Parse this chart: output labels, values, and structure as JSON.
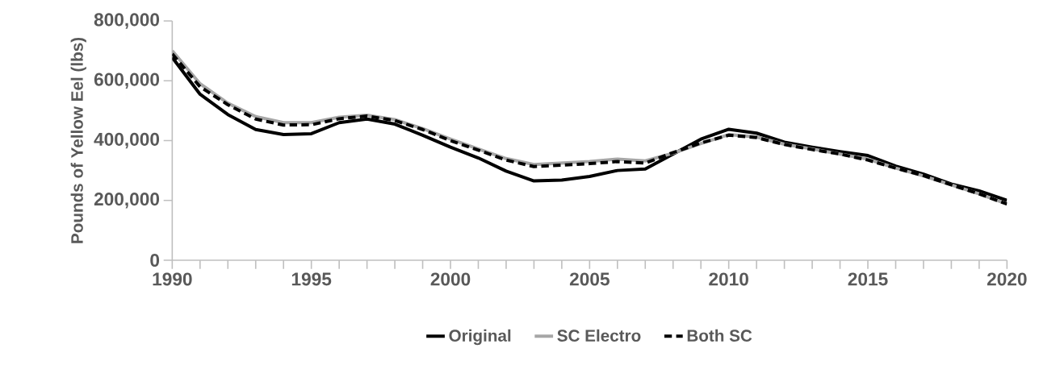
{
  "chart_data": {
    "type": "line",
    "ylabel": "Pounds of Yellow Eel (lbs)",
    "x": [
      1990,
      1991,
      1992,
      1993,
      1994,
      1995,
      1996,
      1997,
      1998,
      1999,
      2000,
      2001,
      2002,
      2003,
      2004,
      2005,
      2006,
      2007,
      2008,
      2009,
      2010,
      2011,
      2012,
      2013,
      2014,
      2015,
      2016,
      2017,
      2018,
      2019,
      2020
    ],
    "series": [
      {
        "name": "Original",
        "color": "#000000",
        "line_style": "solid",
        "values": [
          678000,
          555000,
          487000,
          437000,
          420000,
          423000,
          460000,
          472000,
          455000,
          418000,
          378000,
          342000,
          298000,
          265000,
          268000,
          280000,
          300000,
          305000,
          355000,
          405000,
          438000,
          425000,
          395000,
          378000,
          363000,
          350000,
          315000,
          288000,
          255000,
          232000,
          200000
        ]
      },
      {
        "name": "SC Electro",
        "color": "#a6a6a6",
        "line_style": "solid",
        "values": [
          700000,
          590000,
          525000,
          480000,
          460000,
          460000,
          478000,
          485000,
          470000,
          440000,
          405000,
          372000,
          340000,
          320000,
          325000,
          330000,
          338000,
          332000,
          358000,
          390000,
          420000,
          412000,
          388000,
          372000,
          355000,
          338000,
          308000,
          282000,
          252000,
          222000,
          188000
        ]
      },
      {
        "name": "Both SC",
        "color": "#000000",
        "line_style": "dashed",
        "values": [
          690000,
          580000,
          520000,
          472000,
          452000,
          453000,
          473000,
          482000,
          467000,
          437000,
          400000,
          368000,
          335000,
          313000,
          318000,
          323000,
          330000,
          325000,
          360000,
          392000,
          418000,
          410000,
          387000,
          370000,
          355000,
          335000,
          308000,
          283000,
          252000,
          222000,
          188000
        ]
      }
    ],
    "xlim": [
      1990,
      2020
    ],
    "xticks": [
      1990,
      {
        "value": 1991,
        "label": null
      },
      {
        "value": 1992,
        "label": null
      },
      {
        "value": 1993,
        "label": null
      },
      {
        "value": 1994,
        "label": null
      },
      1995,
      {
        "value": 1996,
        "label": null
      },
      {
        "value": 1997,
        "label": null
      },
      {
        "value": 1998,
        "label": null
      },
      {
        "value": 1999,
        "label": null
      },
      2000,
      {
        "value": 2001,
        "label": null
      },
      {
        "value": 2002,
        "label": null
      },
      {
        "value": 2003,
        "label": null
      },
      {
        "value": 2004,
        "label": null
      },
      2005,
      {
        "value": 2006,
        "label": null
      },
      {
        "value": 2007,
        "label": null
      },
      {
        "value": 2008,
        "label": null
      },
      {
        "value": 2009,
        "label": null
      },
      2010,
      {
        "value": 2011,
        "label": null
      },
      {
        "value": 2012,
        "label": null
      },
      {
        "value": 2013,
        "label": null
      },
      {
        "value": 2014,
        "label": null
      },
      2015,
      {
        "value": 2016,
        "label": null
      },
      {
        "value": 2017,
        "label": null
      },
      {
        "value": 2018,
        "label": null
      },
      {
        "value": 2019,
        "label": null
      },
      2020
    ],
    "ylim": [
      0,
      800000
    ],
    "yticks": [
      0,
      {
        "value": 200000,
        "label": "200,000"
      },
      {
        "value": 400000,
        "label": "400,000"
      },
      {
        "value": 600000,
        "label": "600,000"
      },
      {
        "value": 800000,
        "label": "800,000"
      }
    ],
    "grid": false,
    "legend": "bottom",
    "marker": "none"
  }
}
